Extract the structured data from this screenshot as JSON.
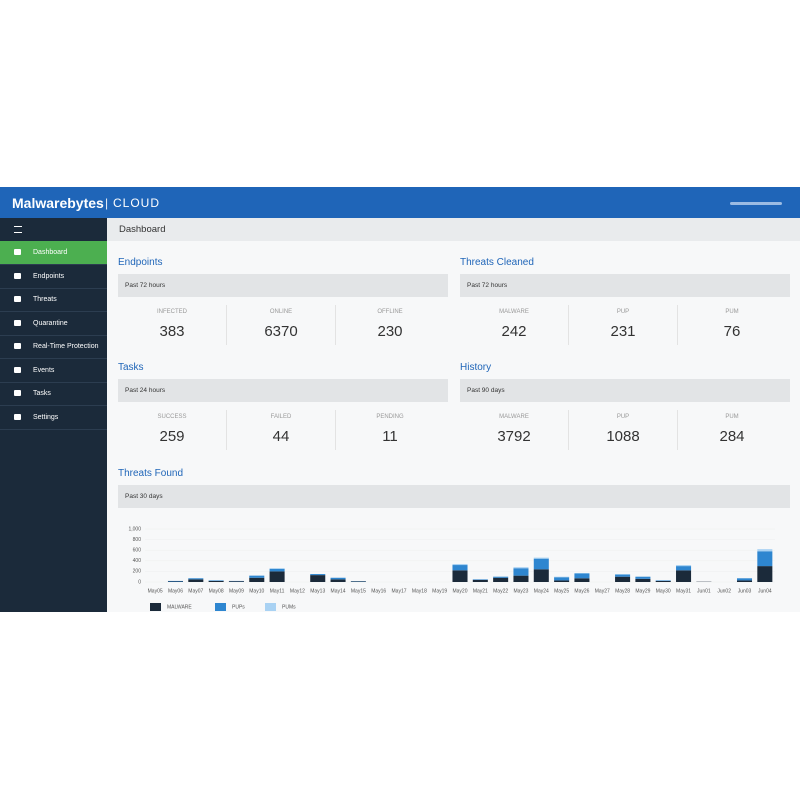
{
  "header": {
    "brand": "Malwarebytes",
    "product": "CLOUD"
  },
  "nav": {
    "items": [
      "Dashboard",
      "Endpoints",
      "Threats",
      "Quarantine",
      "Real-Time Protection",
      "Events",
      "Tasks",
      "Settings"
    ]
  },
  "page_title": "Dashboard",
  "panels": [
    {
      "title": "Endpoints",
      "period": "Past 72 hours",
      "stats": [
        {
          "label": "INFECTED",
          "value": "383"
        },
        {
          "label": "ONLINE",
          "value": "6370"
        },
        {
          "label": "OFFLINE",
          "value": "230"
        }
      ]
    },
    {
      "title": "Threats Cleaned",
      "period": "Past 72 hours",
      "stats": [
        {
          "label": "MALWARE",
          "value": "242"
        },
        {
          "label": "PUP",
          "value": "231"
        },
        {
          "label": "PUM",
          "value": "76"
        }
      ]
    },
    {
      "title": "Tasks",
      "period": "Past 24 hours",
      "stats": [
        {
          "label": "SUCCESS",
          "value": "259"
        },
        {
          "label": "FAILED",
          "value": "44"
        },
        {
          "label": "PENDING",
          "value": "11"
        }
      ]
    },
    {
      "title": "History",
      "period": "Past 90 days",
      "stats": [
        {
          "label": "MALWARE",
          "value": "3792"
        },
        {
          "label": "PUP",
          "value": "1088"
        },
        {
          "label": "PUM",
          "value": "284"
        }
      ]
    }
  ],
  "threats_found": {
    "title": "Threats Found",
    "period": "Past 30 days"
  },
  "chart_data": {
    "type": "stacked-bar",
    "categories": [
      "May05",
      "May06",
      "May07",
      "May08",
      "May09",
      "May10",
      "May11",
      "May12",
      "May13",
      "May14",
      "May15",
      "May16",
      "May17",
      "May18",
      "May19",
      "May20",
      "May21",
      "May22",
      "May23",
      "May24",
      "May25",
      "May26",
      "May27",
      "May28",
      "May29",
      "May30",
      "May31",
      "Jun01",
      "Jun02",
      "Jun03",
      "Jun04"
    ],
    "series": [
      {
        "name": "MALWARE",
        "color": "#1b2a3a",
        "values": [
          0,
          10,
          50,
          20,
          15,
          80,
          200,
          0,
          130,
          50,
          10,
          0,
          0,
          0,
          0,
          220,
          40,
          80,
          120,
          240,
          30,
          70,
          0,
          100,
          60,
          20,
          220,
          5,
          0,
          30,
          300
        ]
      },
      {
        "name": "PUPs",
        "color": "#2e86d0",
        "values": [
          0,
          10,
          20,
          10,
          5,
          40,
          50,
          0,
          20,
          30,
          5,
          0,
          0,
          0,
          0,
          100,
          10,
          20,
          140,
          200,
          60,
          90,
          0,
          40,
          40,
          10,
          80,
          0,
          0,
          40,
          280
        ]
      },
      {
        "name": "PUMs",
        "color": "#a9d2f3",
        "values": [
          0,
          0,
          0,
          0,
          0,
          0,
          10,
          0,
          0,
          0,
          0,
          0,
          0,
          0,
          0,
          20,
          0,
          0,
          20,
          20,
          10,
          10,
          0,
          10,
          0,
          0,
          20,
          0,
          0,
          0,
          40
        ]
      }
    ],
    "ylim": [
      0,
      1000
    ],
    "yticks": [
      0,
      200,
      400,
      600,
      800,
      {
        "value": 1000,
        "label": "1,000"
      }
    ],
    "grid": true
  }
}
